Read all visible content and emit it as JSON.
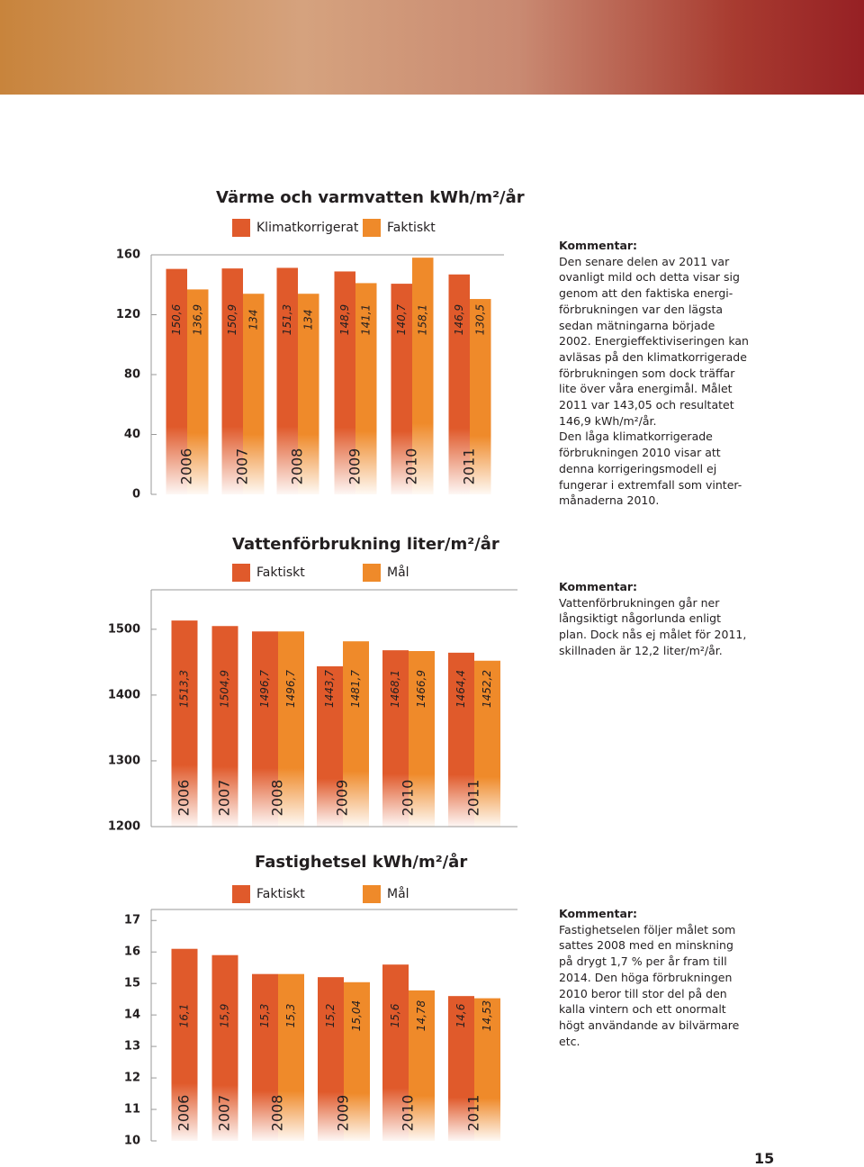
{
  "chart_data": [
    {
      "type": "bar",
      "title": "Värme och varmvatten kWh/m²/år",
      "categories": [
        "2006",
        "2007",
        "2008",
        "2009",
        "2010",
        "2011"
      ],
      "series": [
        {
          "name": "Klimatkorrigerat",
          "color": "#e05a2b",
          "values": [
            150.6,
            150.9,
            151.3,
            148.9,
            140.7,
            146.9
          ],
          "value_labels": [
            "150,6",
            "150,9",
            "151,3",
            "148,9",
            "140,7",
            "146,9"
          ]
        },
        {
          "name": "Faktiskt",
          "color": "#ef8a2a",
          "values": [
            136.9,
            134,
            134,
            141.1,
            158.1,
            130.5
          ],
          "value_labels": [
            "136,9",
            "134",
            "134",
            "141,1",
            "158,1",
            "130,5"
          ]
        }
      ],
      "ylim": [
        0,
        160
      ],
      "yticks": [
        0,
        40,
        80,
        120,
        160
      ]
    },
    {
      "type": "bar",
      "title": "Vattenförbrukning liter/m²/år",
      "categories": [
        "2006",
        "2007",
        "2008",
        "2009",
        "2010",
        "2011"
      ],
      "series": [
        {
          "name": "Faktiskt",
          "color": "#e05a2b",
          "values": [
            1513.3,
            1504.9,
            1496.7,
            1443.7,
            1468.1,
            1464.4
          ],
          "value_labels": [
            "1513,3",
            "1504,9",
            "1496,7",
            "1443,7",
            "1468,1",
            "1464,4"
          ]
        },
        {
          "name": "Mål",
          "color": "#ef8a2a",
          "values": [
            null,
            null,
            1496.7,
            1481.7,
            1466.9,
            1452.2
          ],
          "value_labels": [
            null,
            null,
            "1496,7",
            "1481,7",
            "1466,9",
            "1452,2"
          ]
        }
      ],
      "ylim": [
        1200,
        1560
      ],
      "yticks": [
        1200,
        1300,
        1400,
        1500
      ]
    },
    {
      "type": "bar",
      "title": "Fastighetsel kWh/m²/år",
      "categories": [
        "2006",
        "2007",
        "2008",
        "2009",
        "2010",
        "2011"
      ],
      "series": [
        {
          "name": "Faktiskt",
          "color": "#e05a2b",
          "values": [
            16.1,
            15.9,
            15.3,
            15.2,
            15.6,
            14.6
          ],
          "value_labels": [
            "16,1",
            "15,9",
            "15,3",
            "15,2",
            "15,6",
            "14,6"
          ]
        },
        {
          "name": "Mål",
          "color": "#ef8a2a",
          "values": [
            null,
            null,
            15.3,
            15.04,
            14.78,
            14.53
          ],
          "value_labels": [
            null,
            null,
            "15,3",
            "15,04",
            "14,78",
            "14,53"
          ]
        }
      ],
      "ylim": [
        10,
        17.35
      ],
      "yticks": [
        10,
        11,
        12,
        13,
        14,
        15,
        16,
        17
      ]
    }
  ],
  "comments": [
    [
      "Kommentar:",
      "Den senare delen av 2011 var",
      "ovanligt mild och detta visar sig",
      "genom att den faktiska energi-",
      "förbrukningen var den lägsta",
      "sedan mätningarna började",
      "2002. Energieffektiviseringen kan",
      "avläsas på den klimatkorrigerade",
      "förbrukningen som dock träffar",
      "lite över våra energimål. Målet",
      "2011 var 143,05 och resultatet",
      "146,9 kWh/m²/år.",
      "Den låga klimatkorrigerade",
      "förbrukningen 2010 visar att",
      "denna korrigeringsmodell ej",
      "fungerar i extremfall som vinter-",
      "månaderna 2010."
    ],
    [
      "Kommentar:",
      "Vattenförbrukningen går ner",
      "långsiktigt någorlunda enligt",
      "plan. Dock nås ej målet för 2011,",
      "skillnaden är 12,2 liter/m²/år."
    ],
    [
      "Kommentar:",
      "Fastighetselen följer målet som",
      "sattes 2008 med en minskning",
      "på drygt 1,7 % per år fram till",
      "2014. Den höga förbrukningen",
      "2010 beror till stor del på den",
      "kalla vintern och ett onormalt",
      "högt användande av bilvärmare",
      "etc."
    ]
  ],
  "page_number": "15"
}
